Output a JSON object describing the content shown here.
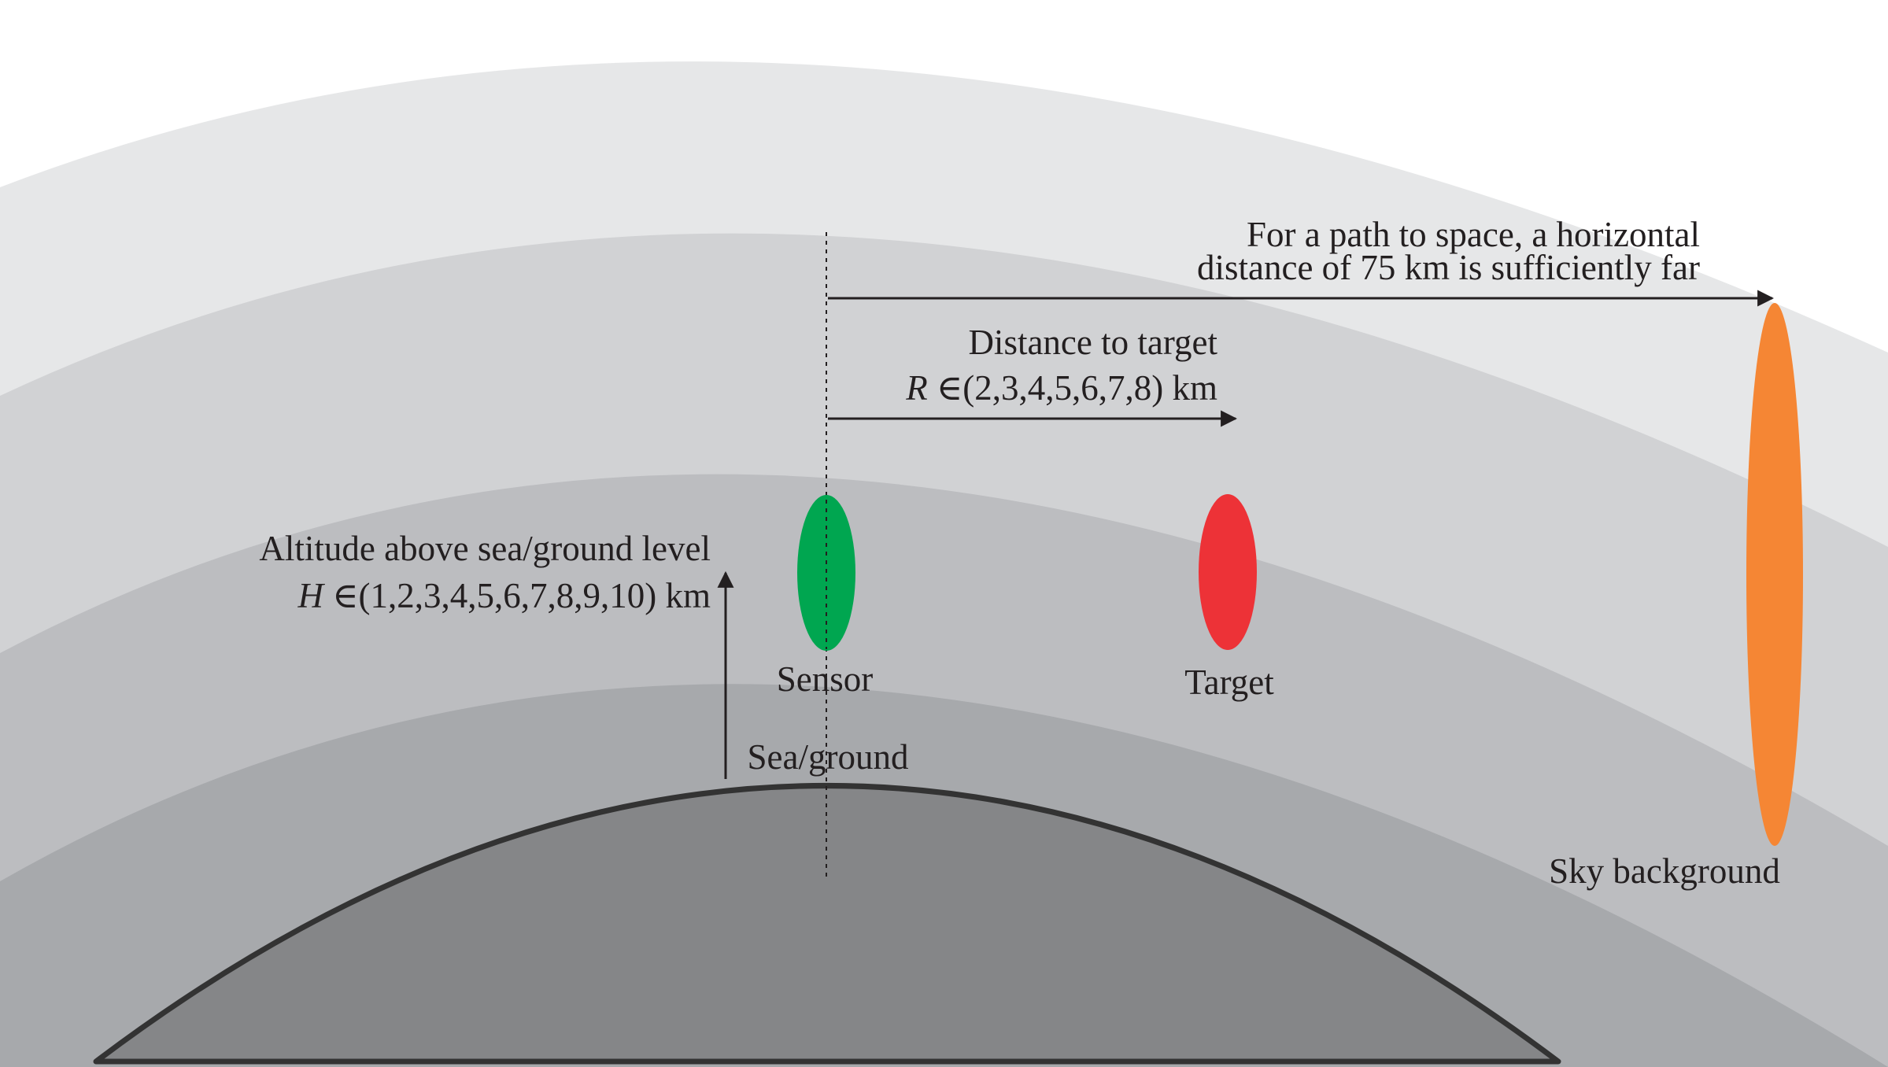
{
  "sensor": {
    "label": "Sensor"
  },
  "target": {
    "label": "Target"
  },
  "sky_background": {
    "label": "Sky background"
  },
  "sea_ground": {
    "label": "Sea/ground"
  },
  "altitude": {
    "title": "Altitude above sea/ground level",
    "symbol": "H",
    "set": " ∈(1,2,3,4,5,6,7,8,9,10) km"
  },
  "distance": {
    "title": "Distance to target",
    "symbol": "R",
    "set": " ∈(2,3,4,5,6,7,8) km"
  },
  "space_path": {
    "line1": "For a path to space, a horizontal",
    "line2": "distance of 75 km is sufficiently far"
  },
  "colors": {
    "sensor": "#00a650",
    "target": "#ed3237",
    "sky_background": "#f58634",
    "ground": "#858688",
    "outline": "#333333",
    "band_outer": "#e6e7e8",
    "band_2": "#d1d2d4",
    "band_3": "#bcbdc0",
    "band_inner": "#a7a9ac"
  }
}
